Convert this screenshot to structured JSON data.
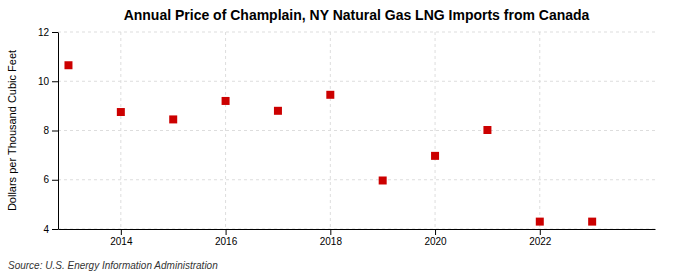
{
  "chart_data": {
    "type": "scatter",
    "title": "Annual Price of Champlain, NY Natural Gas LNG Imports from Canada",
    "y_label": "Dollars per Thousand Cubic Feet",
    "source": "Source: U.S. Energy Information Administration",
    "x": [
      2013,
      2014,
      2015,
      2016,
      2017,
      2018,
      2019,
      2020,
      2021,
      2022,
      2023
    ],
    "values": [
      10.65,
      8.75,
      8.45,
      9.2,
      8.8,
      9.45,
      5.97,
      6.97,
      8.02,
      4.3,
      4.3
    ],
    "color": "#cc0000",
    "marker": "square",
    "xlim": [
      2012.8,
      2024.2
    ],
    "ylim": [
      4,
      12
    ],
    "xticks": [
      2014,
      2016,
      2018,
      2020,
      2022
    ],
    "yticks": [
      4,
      6,
      8,
      10,
      12
    ],
    "grid": true
  }
}
